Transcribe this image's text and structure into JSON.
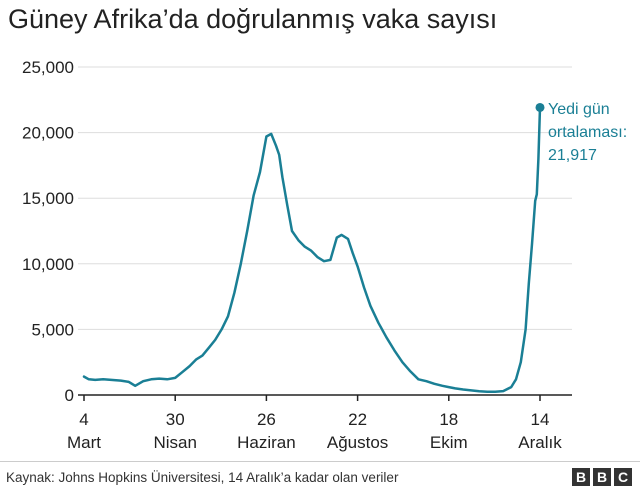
{
  "title": "Güney Afrika’da doğrulanmış vaka sayısı",
  "source": "Kaynak: Johns Hopkins Üniversitesi, 14 Aralık’a kadar olan veriler",
  "logo": [
    "B",
    "B",
    "C"
  ],
  "colors": {
    "line": "#1a7f95",
    "grid": "#dddddd",
    "axis": "#222222",
    "text": "#222222"
  },
  "chart_data": {
    "type": "line",
    "title": "Güney Afrika’da doğrulanmış vaka sayısı",
    "xlabel": "",
    "ylabel": "",
    "ylim": [
      0,
      25000
    ],
    "yticks": [
      0,
      5000,
      10000,
      15000,
      20000,
      25000
    ],
    "ytick_labels": [
      "0",
      "5,000",
      "10,000",
      "15,000",
      "20,000",
      "25,000"
    ],
    "xlim": [
      "2021-03-04",
      "2021-12-21"
    ],
    "xticks": [
      {
        "date": "2021-03-04",
        "day": "4",
        "month": "Mart"
      },
      {
        "date": "2021-04-30",
        "day": "30",
        "month": "Nisan"
      },
      {
        "date": "2021-06-26",
        "day": "26",
        "month": "Haziran"
      },
      {
        "date": "2021-08-22",
        "day": "22",
        "month": "Ağustos"
      },
      {
        "date": "2021-10-18",
        "day": "18",
        "month": "Ekim"
      },
      {
        "date": "2021-12-14",
        "day": "14",
        "month": "Aralık"
      }
    ],
    "grid": true,
    "series": [
      {
        "x": [
          "2021-03-04",
          "2021-03-07",
          "2021-03-11",
          "2021-03-16",
          "2021-03-21",
          "2021-03-27",
          "2021-04-01",
          "2021-04-05",
          "2021-04-10",
          "2021-04-15",
          "2021-04-20",
          "2021-04-25",
          "2021-04-30",
          "2021-05-04",
          "2021-05-09",
          "2021-05-13",
          "2021-05-17",
          "2021-05-21",
          "2021-05-25",
          "2021-05-29",
          "2021-06-02",
          "2021-06-06",
          "2021-06-10",
          "2021-06-14",
          "2021-06-18",
          "2021-06-22",
          "2021-06-26",
          "2021-06-29",
          "2021-07-02",
          "2021-07-04",
          "2021-07-06",
          "2021-07-09",
          "2021-07-12",
          "2021-07-16",
          "2021-07-20",
          "2021-07-24",
          "2021-07-28",
          "2021-08-01",
          "2021-08-05",
          "2021-08-09",
          "2021-08-12",
          "2021-08-16",
          "2021-08-19",
          "2021-08-22",
          "2021-08-26",
          "2021-08-30",
          "2021-09-04",
          "2021-09-09",
          "2021-09-14",
          "2021-09-19",
          "2021-09-24",
          "2021-09-29",
          "2021-10-04",
          "2021-10-09",
          "2021-10-14",
          "2021-10-18",
          "2021-10-22",
          "2021-10-27",
          "2021-11-01",
          "2021-11-06",
          "2021-11-11",
          "2021-11-16",
          "2021-11-21",
          "2021-11-26",
          "2021-11-29",
          "2021-12-02",
          "2021-12-05",
          "2021-12-07",
          "2021-12-09",
          "2021-12-11",
          "2021-12-12",
          "2021-12-13",
          "2021-12-14"
        ],
        "values": [
          1400,
          1200,
          1150,
          1200,
          1150,
          1100,
          1000,
          700,
          1050,
          1200,
          1250,
          1200,
          1300,
          1700,
          2200,
          2700,
          3000,
          3600,
          4200,
          5000,
          6000,
          7800,
          10000,
          12500,
          15200,
          17000,
          19700,
          19900,
          19000,
          18300,
          16600,
          14500,
          12500,
          11800,
          11300,
          11000,
          10500,
          10200,
          10300,
          12000,
          12200,
          11900,
          10800,
          9800,
          8200,
          6800,
          5500,
          4400,
          3400,
          2500,
          1800,
          1200,
          1050,
          850,
          700,
          600,
          500,
          420,
          350,
          280,
          250,
          250,
          300,
          600,
          1200,
          2500,
          5000,
          8500,
          11500,
          14800,
          15300,
          18000,
          21917
        ]
      }
    ],
    "annotation": {
      "text_lines": [
        "Yedi gün",
        "ortalaması:",
        "21,917"
      ],
      "date": "2021-12-14",
      "value": 21917
    }
  }
}
